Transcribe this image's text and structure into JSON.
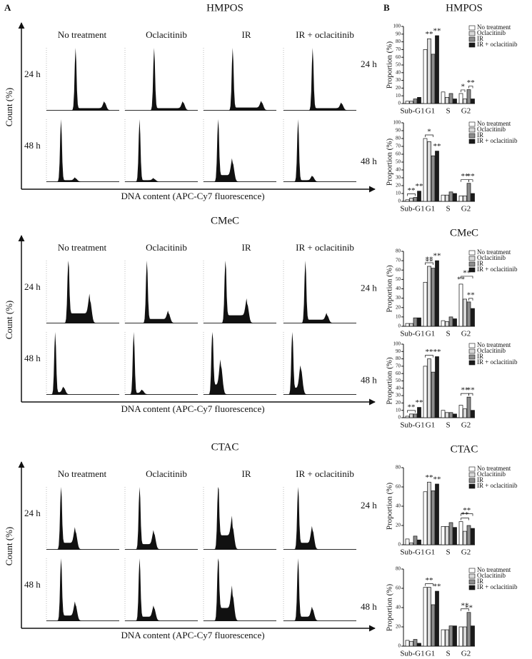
{
  "panel_labels": [
    "A",
    "B"
  ],
  "panel_a": [
    {
      "title": "HMPOS",
      "columns": [
        "No treatment",
        "Oclacitinib",
        "IR",
        "IR + oclacitinib"
      ],
      "rows": [
        "24 h",
        "48 h"
      ],
      "ylabel": "Count (%)",
      "xlabel": "DNA content (APC-Cy7 fluorescence)"
    },
    {
      "title": "CMeC",
      "columns": [
        "No treatment",
        "Oclacitinib",
        "IR",
        "IR + oclacitinib"
      ],
      "rows": [
        "24 h",
        "48 h"
      ],
      "ylabel": "Count (%)",
      "xlabel": "DNA content (APC-Cy7 fluorescence)"
    },
    {
      "title": "CTAC",
      "columns": [
        "No treatment",
        "Oclacitinib",
        "IR",
        "IR + oclacitinib"
      ],
      "rows": [
        "24 h",
        "48 h"
      ],
      "ylabel": "Count (%)",
      "xlabel": "DNA content (APC-Cy7 fluorescence)"
    }
  ],
  "chart_data": [
    {
      "type": "bar",
      "title": "HMPOS",
      "label": "24 h",
      "ylabel": "Proportion (%)",
      "categories": [
        "Sub-G1",
        "G1",
        "S",
        "G2"
      ],
      "series": [
        {
          "name": "No treatment",
          "color": "#ffffff",
          "values": [
            3,
            70,
            15,
            13
          ]
        },
        {
          "name": "Oclacitinib",
          "color": "#d9d9d9",
          "values": [
            3,
            84,
            8,
            6
          ]
        },
        {
          "name": "IR",
          "color": "#8c8c8c",
          "values": [
            6,
            64,
            13,
            18
          ]
        },
        {
          "name": "IR + oclacitinib",
          "color": "#1a1a1a",
          "values": [
            8,
            88,
            6,
            6
          ]
        }
      ],
      "ylim": [
        0,
        100
      ],
      "yticks": [
        0,
        10,
        20,
        30,
        40,
        50,
        60,
        70,
        80,
        90,
        100
      ],
      "annotations": [
        {
          "text": "**",
          "category": "G1",
          "series": "Oclacitinib"
        },
        {
          "text": "**",
          "category": "G1",
          "series": "IR + oclacitinib"
        },
        {
          "text": "*",
          "category": "G2",
          "series": [
            "No treatment",
            "Oclacitinib"
          ]
        },
        {
          "text": "**",
          "category": "G2",
          "series": [
            "IR",
            "IR + oclacitinib"
          ]
        }
      ]
    },
    {
      "type": "bar",
      "label": "48 h",
      "ylabel": "Proportion (%)",
      "categories": [
        "Sub-G1",
        "G1",
        "S",
        "G2"
      ],
      "series": [
        {
          "name": "No treatment",
          "color": "#ffffff",
          "values": [
            2,
            80,
            8,
            7
          ]
        },
        {
          "name": "Oclacitinib",
          "color": "#d9d9d9",
          "values": [
            4,
            76,
            8,
            7
          ]
        },
        {
          "name": "IR",
          "color": "#8c8c8c",
          "values": [
            5,
            58,
            12,
            23
          ]
        },
        {
          "name": "IR + oclacitinib",
          "color": "#1a1a1a",
          "values": [
            13,
            64,
            10,
            10
          ]
        }
      ],
      "ylim": [
        0,
        100
      ],
      "yticks": [
        0,
        10,
        20,
        30,
        40,
        50,
        60,
        70,
        80,
        90,
        100
      ],
      "annotations": [
        {
          "text": "**",
          "category": "Sub-G1",
          "series": [
            "No treatment",
            "IR"
          ]
        },
        {
          "text": "**",
          "category": "Sub-G1",
          "series": "IR + oclacitinib"
        },
        {
          "text": "*",
          "category": "G1",
          "series": [
            "No treatment",
            "IR"
          ]
        },
        {
          "text": "**",
          "category": "G1",
          "series": "IR + oclacitinib"
        },
        {
          "text": "**",
          "category": "G2",
          "series": [
            "No treatment",
            "IR"
          ]
        },
        {
          "text": "**",
          "category": "G2",
          "series": [
            "IR",
            "IR + oclacitinib"
          ]
        }
      ]
    },
    {
      "type": "bar",
      "title": "CMeC",
      "label": "24 h",
      "ylabel": "Proportion (%)",
      "categories": [
        "Sub-G1",
        "G1",
        "S",
        "G2"
      ],
      "series": [
        {
          "name": "No treatment",
          "color": "#ffffff",
          "values": [
            3,
            47,
            6,
            45
          ]
        },
        {
          "name": "Oclacitinib",
          "color": "#d9d9d9",
          "values": [
            3,
            64,
            5,
            29
          ]
        },
        {
          "name": "IR",
          "color": "#8c8c8c",
          "values": [
            9,
            62,
            10,
            26
          ]
        },
        {
          "name": "IR + oclacitinib",
          "color": "#1a1a1a",
          "values": [
            9,
            70,
            8,
            19
          ]
        }
      ],
      "ylim": [
        0,
        80
      ],
      "yticks": [
        0,
        10,
        20,
        30,
        40,
        50,
        60,
        70,
        80
      ],
      "annotations": [
        {
          "text": "**",
          "category": "G1",
          "series": "Oclacitinib"
        },
        {
          "text": "**",
          "category": "G1",
          "series": [
            "No treatment",
            "IR"
          ]
        },
        {
          "text": "**",
          "category": "G1",
          "series": "IR + oclacitinib"
        },
        {
          "text": "**",
          "category": "G2",
          "series": "No treatment"
        },
        {
          "text": "**",
          "category": "G2",
          "series": [
            "No treatment",
            "IR + oclacitinib"
          ]
        },
        {
          "text": "**",
          "category": "G2",
          "series": [
            "IR",
            "IR + oclacitinib"
          ]
        }
      ]
    },
    {
      "type": "bar",
      "label": "48 h",
      "ylabel": "Proportion (%)",
      "categories": [
        "Sub-G1",
        "G1",
        "S",
        "G2"
      ],
      "series": [
        {
          "name": "No treatment",
          "color": "#ffffff",
          "values": [
            2,
            70,
            10,
            17
          ]
        },
        {
          "name": "Oclacitinib",
          "color": "#d9d9d9",
          "values": [
            5,
            80,
            7,
            12
          ]
        },
        {
          "name": "IR",
          "color": "#8c8c8c",
          "values": [
            5,
            62,
            7,
            28
          ]
        },
        {
          "name": "IR + oclacitinib",
          "color": "#1a1a1a",
          "values": [
            14,
            83,
            5,
            10
          ]
        }
      ],
      "ylim": [
        0,
        100
      ],
      "yticks": [
        0,
        10,
        20,
        30,
        40,
        50,
        60,
        70,
        80,
        90,
        100
      ],
      "annotations": [
        {
          "text": "**",
          "category": "Sub-G1",
          "series": [
            "No treatment",
            "IR"
          ]
        },
        {
          "text": "**",
          "category": "Sub-G1",
          "series": "IR + oclacitinib"
        },
        {
          "text": "**",
          "category": "G1",
          "series": [
            "No treatment",
            "IR"
          ]
        },
        {
          "text": "**",
          "category": "G1",
          "series": "IR + oclacitinib"
        },
        {
          "text": "**",
          "category": "G2",
          "series": [
            "No treatment",
            "IR"
          ]
        },
        {
          "text": "**",
          "category": "G2",
          "series": [
            "IR",
            "IR + oclacitinib"
          ]
        }
      ]
    },
    {
      "type": "bar",
      "title": "CTAC",
      "label": "24 h",
      "ylabel": "Proportion (%)",
      "categories": [
        "Sub-G1",
        "G1",
        "S",
        "G2"
      ],
      "series": [
        {
          "name": "No treatment",
          "color": "#ffffff",
          "values": [
            6,
            55,
            19,
            24
          ]
        },
        {
          "name": "Oclacitinib",
          "color": "#d9d9d9",
          "values": [
            2,
            65,
            19,
            14
          ]
        },
        {
          "name": "IR",
          "color": "#8c8c8c",
          "values": [
            9,
            56,
            23,
            20
          ]
        },
        {
          "name": "IR + oclacitinib",
          "color": "#1a1a1a",
          "values": [
            5,
            63,
            18,
            17
          ]
        }
      ],
      "ylim": [
        0,
        80
      ],
      "yticks": [
        0,
        20,
        40,
        60,
        80
      ],
      "annotations": [
        {
          "text": "**",
          "category": "G1",
          "series": "Oclacitinib"
        },
        {
          "text": "**",
          "category": "G1",
          "series": "IR + oclacitinib"
        },
        {
          "text": "**",
          "category": "G2",
          "series": [
            "No treatment",
            "IR"
          ]
        },
        {
          "text": "**",
          "category": "G2",
          "series": [
            "No treatment",
            "IR + oclacitinib"
          ]
        }
      ]
    },
    {
      "type": "bar",
      "label": "48 h",
      "ylabel": "Proportion (%)",
      "categories": [
        "Sub-G1",
        "G1",
        "S",
        "G2"
      ],
      "series": [
        {
          "name": "No treatment",
          "color": "#ffffff",
          "values": [
            6,
            61,
            17,
            20
          ]
        },
        {
          "name": "Oclacitinib",
          "color": "#d9d9d9",
          "values": [
            5,
            61,
            17,
            20
          ]
        },
        {
          "name": "IR",
          "color": "#8c8c8c",
          "values": [
            7,
            43,
            21,
            35
          ]
        },
        {
          "name": "IR + oclacitinib",
          "color": "#1a1a1a",
          "values": [
            3,
            57,
            21,
            21
          ]
        }
      ],
      "ylim": [
        0,
        80
      ],
      "yticks": [
        0,
        20,
        40,
        60,
        80
      ],
      "annotations": [
        {
          "text": "**",
          "category": "G1",
          "series": [
            "No treatment",
            "IR"
          ]
        },
        {
          "text": "**",
          "category": "G1",
          "series": "IR + oclacitinib"
        },
        {
          "text": "**",
          "category": "G2",
          "series": [
            "No treatment",
            "IR"
          ]
        },
        {
          "text": "**",
          "category": "G2",
          "series": "IR"
        }
      ]
    }
  ]
}
